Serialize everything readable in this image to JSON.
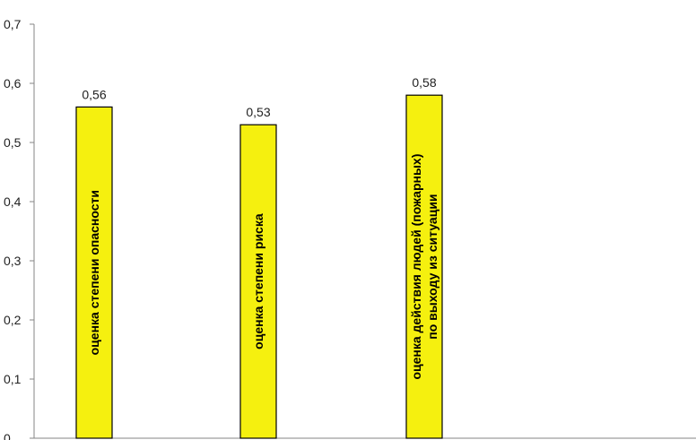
{
  "chart_data": {
    "type": "bar",
    "categories": [
      [
        "оценка степени опасности"
      ],
      [
        "оценка степени риска"
      ],
      [
        "оценка действия людей (пожарных)",
        "по выходу из ситуации"
      ]
    ],
    "values": [
      0.56,
      0.53,
      0.58
    ],
    "value_labels": [
      "0,56",
      "0,53",
      "0,58"
    ],
    "ylim": [
      0,
      0.7
    ],
    "yticks": [
      {
        "value": 0,
        "label": "0"
      },
      {
        "value": 0.1,
        "label": "0,1"
      },
      {
        "value": 0.2,
        "label": "0,2"
      },
      {
        "value": 0.3,
        "label": "0,3"
      },
      {
        "value": 0.4,
        "label": "0,4"
      },
      {
        "value": 0.5,
        "label": "0,5"
      },
      {
        "value": 0.6,
        "label": "0,6"
      },
      {
        "value": 0.7,
        "label": "0,7"
      }
    ],
    "title": "",
    "xlabel": "",
    "ylabel": "",
    "grid": false,
    "legend": false,
    "category_labels_orientation": "vertical-inside-bars",
    "bar_color": "#f5f00f",
    "bar_edge_color": "#000000",
    "axis_color": "#868686"
  }
}
